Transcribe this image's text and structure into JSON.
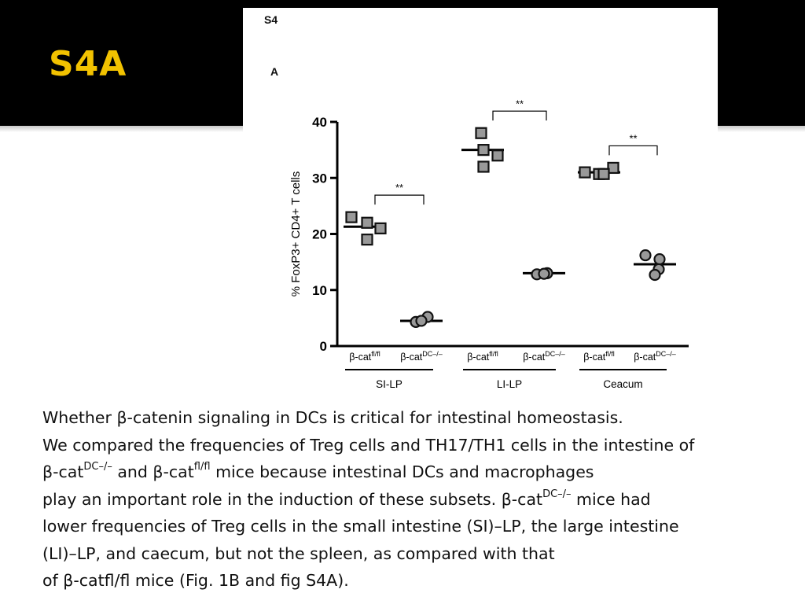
{
  "slide": {
    "title": "S4A",
    "title_color": "#f2c200",
    "background_band_color": "#000000"
  },
  "figure": {
    "figure_label": "S4",
    "panel_label": "A"
  },
  "chart_data": {
    "type": "scatter",
    "ylabel": "% FoxP3+ CD4+ T cells",
    "ylim": [
      0,
      40
    ],
    "yticks": [
      0,
      10,
      20,
      30,
      40
    ],
    "marker_color": "#999999",
    "groups": [
      {
        "label": "SI-LP",
        "significance": "**",
        "conditions": [
          {
            "label": "β-cat",
            "sup": "fl/fl",
            "marker": "square",
            "mean": 21.3,
            "points": [
              23,
              22,
              21,
              19
            ]
          },
          {
            "label": "β-cat",
            "sup": "DC–/–",
            "marker": "circle",
            "mean": 4.5,
            "points": [
              4.3,
              5.2,
              4.5
            ]
          }
        ]
      },
      {
        "label": "LI-LP",
        "significance": "**",
        "conditions": [
          {
            "label": "β-cat",
            "sup": "fl/fl",
            "marker": "square",
            "mean": 35,
            "points": [
              38,
              35,
              34,
              32
            ]
          },
          {
            "label": "β-cat",
            "sup": "DC–/–",
            "marker": "circle",
            "mean": 13,
            "points": [
              12.8,
              13.0,
              12.9
            ]
          }
        ]
      },
      {
        "label": "Ceacum",
        "significance": "**",
        "conditions": [
          {
            "label": "β-cat",
            "sup": "fl/fl",
            "marker": "square",
            "mean": 31,
            "points": [
              31,
              30.7,
              31.8,
              30.7
            ]
          },
          {
            "label": "β-cat",
            "sup": "DC–/–",
            "marker": "circle",
            "mean": 14.6,
            "points": [
              16.2,
              15.5,
              13.7,
              12.7
            ]
          }
        ]
      }
    ]
  },
  "text": {
    "line1": "Whether β-catenin signaling in DCs is critical for intestinal homeostasis.",
    "line2": "We compared the frequencies of Treg cells and TH17/TH1 cells in the intestine of",
    "line3": {
      "a": "β-cat",
      "b": "DC–/–",
      "c": " and β-cat",
      "d": "fl/fl",
      "e": " mice because intestinal DCs and macrophages"
    },
    "line4": {
      "a": "play an important role in the induction of these subsets. β-cat",
      "b": "DC–/–",
      "c": " mice had"
    },
    "line5": "lower frequencies of Treg cells in the small intestine (SI)–LP, the large intestine",
    "line6": "(LI)–LP, and caecum, but not the spleen, as compared with that",
    "line7": "of β-catfl/fl mice (Fig. 1B and fig S4A)."
  }
}
